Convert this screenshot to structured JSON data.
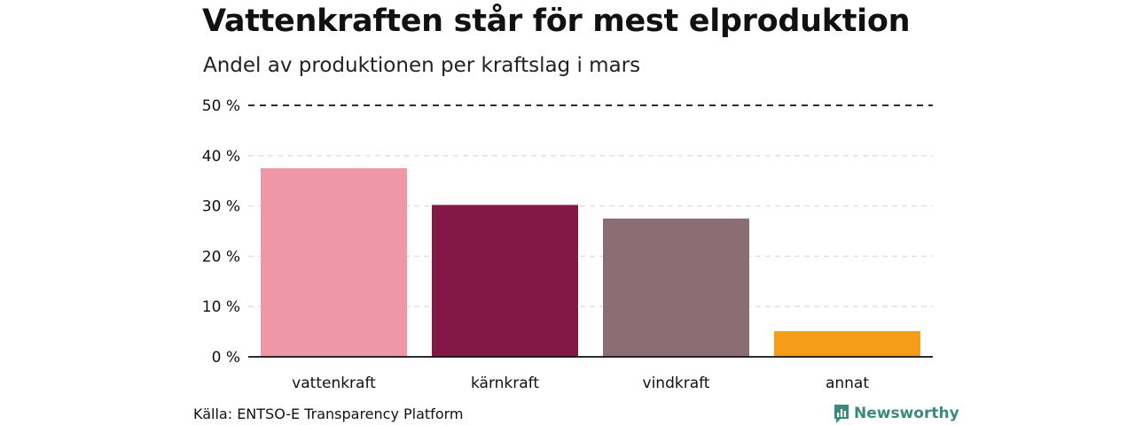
{
  "brand": {
    "name": "Newsworthy",
    "color": "#3a8a7e",
    "icon": "newsworthy-logo-icon"
  },
  "source": "Källa: ENTSO-E Transparency Platform",
  "chart_data": {
    "type": "bar",
    "title": "Vattenkraften står för mest elproduktion",
    "subtitle": "Andel av produktionen per kraftslag i mars",
    "xlabel": "",
    "ylabel": "",
    "categories": [
      "vattenkraft",
      "kärnkraft",
      "vindkraft",
      "annat"
    ],
    "values": [
      37.5,
      30.2,
      27.5,
      5.1
    ],
    "colors": [
      "#ee98a7",
      "#851747",
      "#8a6d75",
      "#f59d19"
    ],
    "ylim": [
      0,
      50
    ],
    "yticks": [
      {
        "value": 0,
        "label": "0 %"
      },
      {
        "value": 10,
        "label": "10 %"
      },
      {
        "value": 20,
        "label": "20 %"
      },
      {
        "value": 30,
        "label": "30 %"
      },
      {
        "value": 40,
        "label": "40 %"
      },
      {
        "value": 50,
        "label": "50 %"
      }
    ],
    "grid": true,
    "legend": "none"
  }
}
